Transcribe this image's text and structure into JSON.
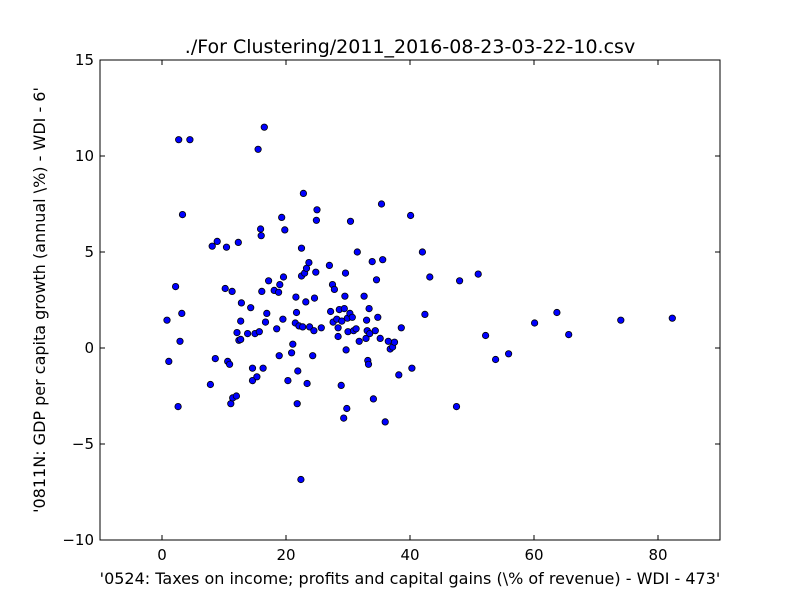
{
  "chart_data": {
    "type": "scatter",
    "title": "./For Clustering/2011_2016-08-23-03-22-10.csv",
    "xlabel": "'0524: Taxes on income; profits and capital gains  (\\% of revenue) - WDI - 473'",
    "ylabel": "'0811N: GDP per capita growth  (annual \\%) - WDI - 6'",
    "xlim": [
      -10,
      90
    ],
    "ylim": [
      -10,
      15
    ],
    "xticks": [
      0,
      20,
      40,
      60,
      80
    ],
    "yticks": [
      -10,
      -5,
      0,
      5,
      10,
      15
    ],
    "xtick_labels": [
      "0",
      "20",
      "40",
      "60",
      "80"
    ],
    "ytick_labels": [
      "−10",
      "−5",
      "0",
      "5",
      "10",
      "15"
    ],
    "grid": false,
    "marker_color": "#0000ff",
    "points": [
      [
        0.8,
        1.45
      ],
      [
        1.1,
        -0.7
      ],
      [
        2.2,
        3.2
      ],
      [
        2.6,
        -3.05
      ],
      [
        2.7,
        10.85
      ],
      [
        2.9,
        0.35
      ],
      [
        3.2,
        1.8
      ],
      [
        3.3,
        6.95
      ],
      [
        4.5,
        10.85
      ],
      [
        7.8,
        -1.9
      ],
      [
        8.1,
        5.3
      ],
      [
        8.6,
        -0.55
      ],
      [
        8.9,
        5.55
      ],
      [
        10.2,
        3.1
      ],
      [
        10.4,
        5.25
      ],
      [
        10.6,
        -0.7
      ],
      [
        10.9,
        -0.85
      ],
      [
        11.1,
        -2.9
      ],
      [
        11.3,
        2.95
      ],
      [
        11.4,
        -2.6
      ],
      [
        12.0,
        -2.5
      ],
      [
        12.1,
        0.8
      ],
      [
        12.3,
        5.5
      ],
      [
        12.4,
        0.4
      ],
      [
        12.7,
        0.45
      ],
      [
        12.7,
        1.4
      ],
      [
        12.8,
        2.35
      ],
      [
        13.8,
        0.75
      ],
      [
        14.3,
        2.1
      ],
      [
        14.6,
        -1.7
      ],
      [
        14.6,
        -1.05
      ],
      [
        15.0,
        0.75
      ],
      [
        15.3,
        -1.5
      ],
      [
        15.5,
        10.35
      ],
      [
        15.7,
        0.85
      ],
      [
        15.9,
        6.2
      ],
      [
        16.0,
        5.85
      ],
      [
        16.1,
        2.95
      ],
      [
        16.3,
        -1.05
      ],
      [
        16.5,
        11.5
      ],
      [
        16.7,
        1.35
      ],
      [
        16.9,
        1.8
      ],
      [
        17.2,
        3.5
      ],
      [
        18.1,
        3.0
      ],
      [
        18.5,
        1.0
      ],
      [
        18.8,
        2.9
      ],
      [
        18.9,
        -0.4
      ],
      [
        19.0,
        3.3
      ],
      [
        19.3,
        6.8
      ],
      [
        19.5,
        1.5
      ],
      [
        19.6,
        3.7
      ],
      [
        19.8,
        6.15
      ],
      [
        20.3,
        -1.7
      ],
      [
        20.9,
        -0.25
      ],
      [
        21.1,
        0.2
      ],
      [
        21.5,
        1.3
      ],
      [
        21.6,
        2.65
      ],
      [
        21.7,
        1.85
      ],
      [
        21.8,
        -2.9
      ],
      [
        21.9,
        -1.2
      ],
      [
        22.1,
        1.15
      ],
      [
        22.4,
        -6.85
      ],
      [
        22.5,
        5.2
      ],
      [
        22.5,
        3.75
      ],
      [
        22.7,
        1.1
      ],
      [
        22.8,
        8.05
      ],
      [
        23.0,
        3.9
      ],
      [
        23.2,
        2.4
      ],
      [
        23.3,
        4.15
      ],
      [
        23.4,
        -1.85
      ],
      [
        23.7,
        4.45
      ],
      [
        23.8,
        1.1
      ],
      [
        24.3,
        -0.4
      ],
      [
        24.5,
        0.9
      ],
      [
        24.6,
        2.6
      ],
      [
        24.8,
        3.95
      ],
      [
        24.9,
        6.65
      ],
      [
        25.0,
        7.2
      ],
      [
        25.7,
        1.05
      ],
      [
        27.0,
        4.3
      ],
      [
        27.2,
        1.9
      ],
      [
        27.5,
        3.3
      ],
      [
        27.6,
        1.35
      ],
      [
        27.8,
        3.05
      ],
      [
        28.2,
        1.5
      ],
      [
        28.4,
        0.6
      ],
      [
        28.4,
        1.05
      ],
      [
        28.6,
        2.0
      ],
      [
        28.9,
        -1.95
      ],
      [
        29.0,
        1.4
      ],
      [
        29.3,
        -3.65
      ],
      [
        29.4,
        2.05
      ],
      [
        29.5,
        2.7
      ],
      [
        29.6,
        3.9
      ],
      [
        29.7,
        -0.1
      ],
      [
        29.8,
        -3.15
      ],
      [
        29.9,
        1.55
      ],
      [
        30.0,
        0.85
      ],
      [
        30.3,
        1.8
      ],
      [
        30.4,
        6.6
      ],
      [
        30.7,
        1.6
      ],
      [
        30.9,
        0.9
      ],
      [
        31.3,
        1.0
      ],
      [
        31.5,
        5.0
      ],
      [
        31.8,
        0.35
      ],
      [
        32.6,
        2.7
      ],
      [
        32.9,
        0.5
      ],
      [
        33.0,
        1.45
      ],
      [
        33.1,
        0.9
      ],
      [
        33.2,
        -0.65
      ],
      [
        33.3,
        -0.85
      ],
      [
        33.4,
        2.05
      ],
      [
        33.5,
        0.75
      ],
      [
        33.9,
        4.5
      ],
      [
        34.1,
        -2.65
      ],
      [
        34.4,
        0.9
      ],
      [
        34.6,
        3.55
      ],
      [
        34.8,
        1.6
      ],
      [
        35.2,
        0.5
      ],
      [
        35.4,
        7.5
      ],
      [
        35.6,
        4.6
      ],
      [
        36.0,
        -3.85
      ],
      [
        36.5,
        0.35
      ],
      [
        36.8,
        -0.05
      ],
      [
        37.2,
        0.05
      ],
      [
        37.5,
        0.3
      ],
      [
        38.2,
        -1.4
      ],
      [
        38.6,
        1.05
      ],
      [
        40.1,
        6.9
      ],
      [
        40.3,
        -1.05
      ],
      [
        42.0,
        5.0
      ],
      [
        42.4,
        1.75
      ],
      [
        43.2,
        3.7
      ],
      [
        47.5,
        -3.05
      ],
      [
        48.0,
        3.5
      ],
      [
        51.0,
        3.85
      ],
      [
        52.2,
        0.65
      ],
      [
        53.8,
        -0.6
      ],
      [
        55.9,
        -0.3
      ],
      [
        60.1,
        1.3
      ],
      [
        63.7,
        1.85
      ],
      [
        65.6,
        0.7
      ],
      [
        74.0,
        1.45
      ],
      [
        82.3,
        1.55
      ]
    ]
  }
}
